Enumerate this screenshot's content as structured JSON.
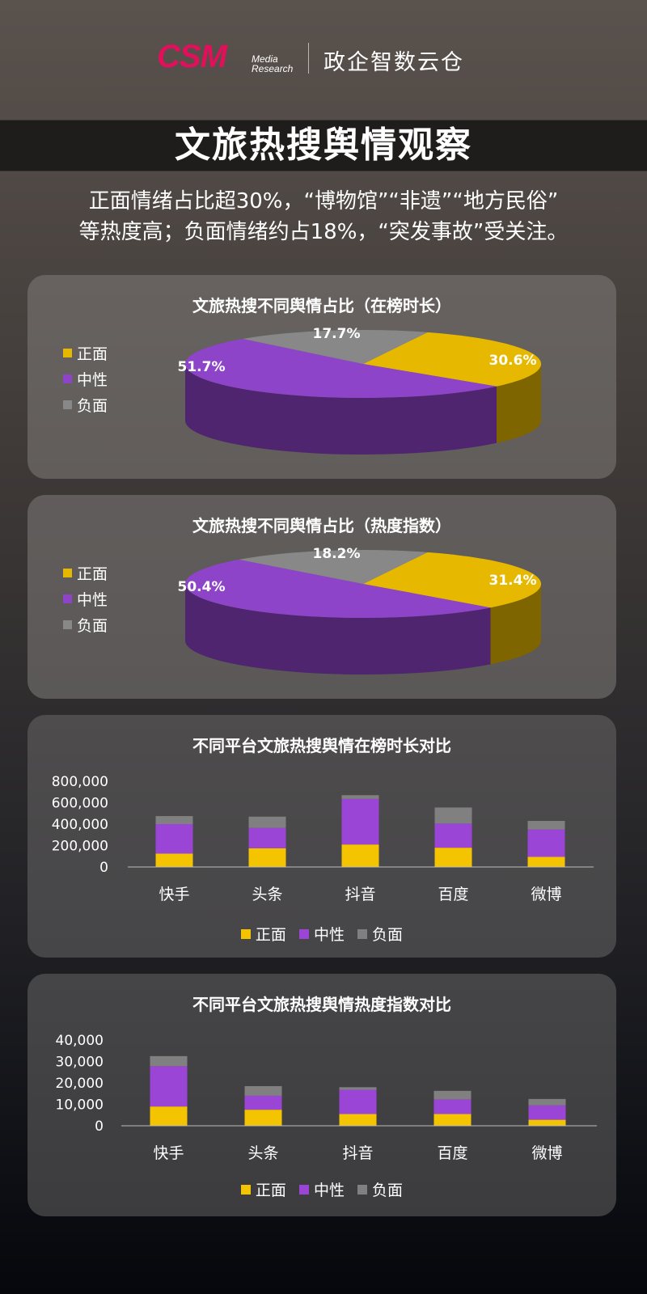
{
  "header": {
    "logo_text": "CSM",
    "logo_sub1": "Media",
    "logo_sub2": "Research",
    "brand": "政企智数云仓"
  },
  "title": "文旅热搜舆情观察",
  "subtitle": {
    "line1": "正面情绪占比超30%，“博物馆”“非遗”“地方民俗”",
    "line2": "等热度高；负面情绪约占18%，“突发事故”受关注。"
  },
  "legend": {
    "positive": "正面",
    "neutral": "中性",
    "negative": "负面"
  },
  "colors": {
    "positive": "#e6b800",
    "neutral": "#8e44c8",
    "negative": "#888888"
  },
  "chart_data": [
    {
      "type": "pie",
      "title": "文旅热搜不同舆情占比（在榜时长）",
      "labels": [
        "正面",
        "中性",
        "负面"
      ],
      "values": [
        30.6,
        51.7,
        17.7
      ],
      "value_labels": [
        "30.6%",
        "51.7%",
        "17.7%"
      ],
      "legend_position": "left",
      "style": "3d"
    },
    {
      "type": "pie",
      "title": "文旅热搜不同舆情占比（热度指数）",
      "labels": [
        "正面",
        "中性",
        "负面"
      ],
      "values": [
        31.4,
        50.4,
        18.2
      ],
      "value_labels": [
        "31.4%",
        "50.4%",
        "18.2%"
      ],
      "legend_position": "left",
      "style": "3d"
    },
    {
      "type": "bar",
      "stacked": true,
      "title": "不同平台文旅热搜舆情在榜时长对比",
      "categories": [
        "快手",
        "头条",
        "抖音",
        "百度",
        "微博"
      ],
      "series": [
        {
          "name": "正面",
          "values": [
            125000,
            175000,
            210000,
            180000,
            95000
          ]
        },
        {
          "name": "中性",
          "values": [
            275000,
            190000,
            425000,
            225000,
            255000
          ]
        },
        {
          "name": "负面",
          "values": [
            75000,
            105000,
            35000,
            150000,
            80000
          ]
        }
      ],
      "ylim": [
        0,
        800000
      ],
      "yticks": [
        "0",
        "200,000",
        "400,000",
        "600,000",
        "800,000"
      ],
      "grid": false,
      "legend_position": "bottom"
    },
    {
      "type": "bar",
      "stacked": true,
      "title": "不同平台文旅热搜舆情热度指数对比",
      "categories": [
        "快手",
        "头条",
        "抖音",
        "百度",
        "微博"
      ],
      "series": [
        {
          "name": "正面",
          "values": [
            9000,
            7500,
            5500,
            5500,
            2800
          ]
        },
        {
          "name": "中性",
          "values": [
            18800,
            6500,
            11300,
            6800,
            6700
          ]
        },
        {
          "name": "负面",
          "values": [
            4700,
            4500,
            1200,
            4000,
            3000
          ]
        }
      ],
      "ylim": [
        0,
        40000
      ],
      "yticks": [
        "0",
        "10,000",
        "20,000",
        "30,000",
        "40,000"
      ],
      "grid": false,
      "legend_position": "bottom"
    }
  ]
}
